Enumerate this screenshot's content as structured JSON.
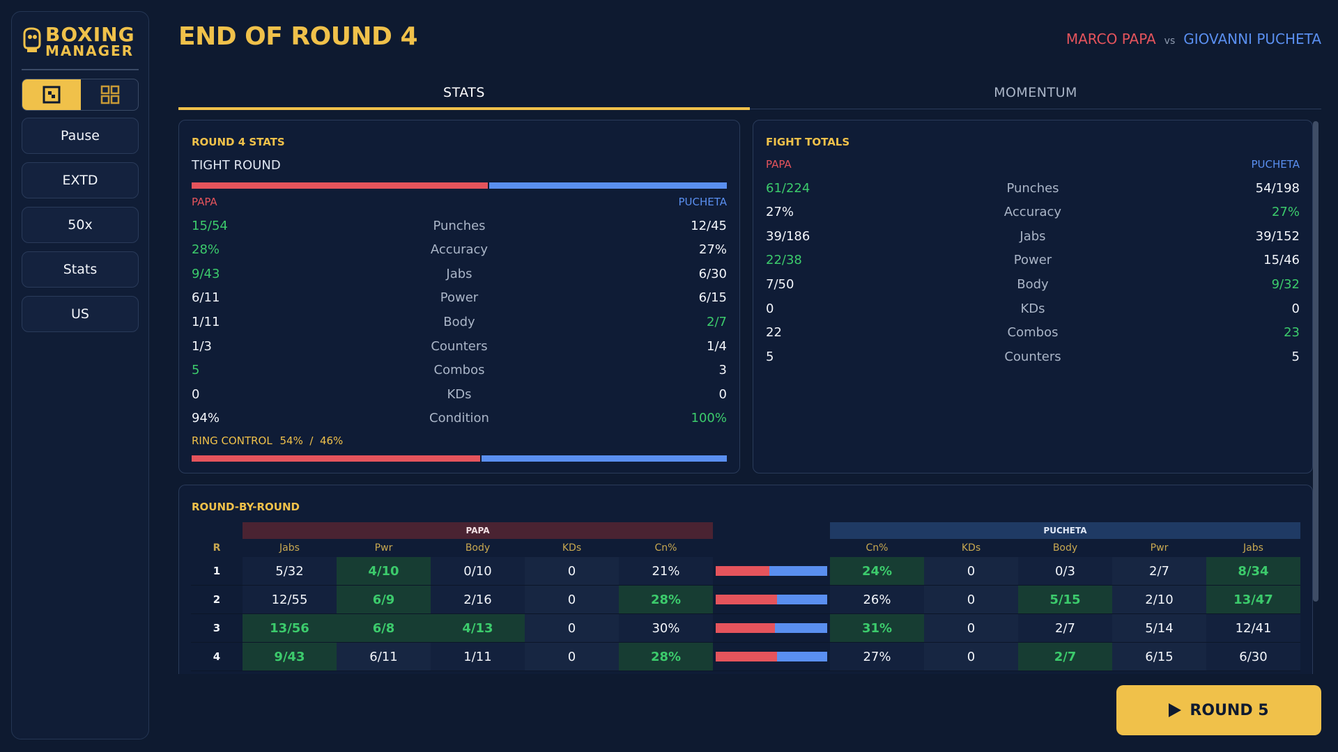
{
  "app": {
    "logo_line1": "BOXING",
    "logo_line2": "MANAGER"
  },
  "sidebar": {
    "view_toggle": [
      "single-view-icon",
      "grid-view-icon"
    ],
    "buttons": [
      "Pause",
      "EXTD",
      "50x",
      "Stats",
      "US"
    ]
  },
  "header": {
    "title": "END OF ROUND 4",
    "fighter_red": "MARCO PAPA",
    "vs": "vs",
    "fighter_blue": "GIOVANNI PUCHETA"
  },
  "tabs": [
    {
      "label": "STATS",
      "active": true
    },
    {
      "label": "MOMENTUM",
      "active": false
    }
  ],
  "colors": {
    "accent": "#f0c14a",
    "red": "#e5545c",
    "blue": "#5a8ff0",
    "win": "#3ccb6c"
  },
  "round_stats": {
    "title": "ROUND 4 STATS",
    "verdict": "TIGHT ROUND",
    "balance_red": 0.555,
    "left_name": "PAPA",
    "right_name": "PUCHETA",
    "rows": [
      {
        "label": "Punches",
        "left": "15/54",
        "right": "12/45",
        "winner": "left"
      },
      {
        "label": "Accuracy",
        "left": "28%",
        "right": "27%",
        "winner": "left"
      },
      {
        "label": "Jabs",
        "left": "9/43",
        "right": "6/30",
        "winner": "left"
      },
      {
        "label": "Power",
        "left": "6/11",
        "right": "6/15",
        "winner": ""
      },
      {
        "label": "Body",
        "left": "1/11",
        "right": "2/7",
        "winner": "right"
      },
      {
        "label": "Counters",
        "left": "1/3",
        "right": "1/4",
        "winner": ""
      },
      {
        "label": "Combos",
        "left": "5",
        "right": "3",
        "winner": "left"
      },
      {
        "label": "KDs",
        "left": "0",
        "right": "0",
        "winner": ""
      },
      {
        "label": "Condition",
        "left": "94%",
        "right": "100%",
        "winner": "right"
      }
    ],
    "ring_control_label": "RING CONTROL",
    "ring_control_text": "54%  /  46%",
    "ring_control_red": 0.54
  },
  "fight_totals": {
    "title": "FIGHT TOTALS",
    "left_name": "PAPA",
    "right_name": "PUCHETA",
    "rows": [
      {
        "label": "Punches",
        "left": "61/224",
        "right": "54/198",
        "winner": "left"
      },
      {
        "label": "Accuracy",
        "left": "27%",
        "right": "27%",
        "winner": "right"
      },
      {
        "label": "Jabs",
        "left": "39/186",
        "right": "39/152",
        "winner": ""
      },
      {
        "label": "Power",
        "left": "22/38",
        "right": "15/46",
        "winner": "left"
      },
      {
        "label": "Body",
        "left": "7/50",
        "right": "9/32",
        "winner": "right"
      },
      {
        "label": "KDs",
        "left": "0",
        "right": "0",
        "winner": ""
      },
      {
        "label": "Combos",
        "left": "22",
        "right": "23",
        "winner": "right"
      },
      {
        "label": "Counters",
        "left": "5",
        "right": "5",
        "winner": ""
      }
    ]
  },
  "round_by_round": {
    "title": "ROUND-BY-ROUND",
    "papa_group": "PAPA",
    "pucheta_group": "PUCHETA",
    "col_round": "R",
    "papa_cols": [
      "Jabs",
      "Pwr",
      "Body",
      "KDs",
      "Cn%"
    ],
    "pucheta_cols": [
      "Cn%",
      "KDs",
      "Body",
      "Pwr",
      "Jabs"
    ],
    "rows": [
      {
        "r": "1",
        "papa": [
          "5/32",
          "4/10",
          "0/10",
          "0",
          "21%"
        ],
        "papa_win": [
          false,
          true,
          false,
          false,
          false
        ],
        "momentum_red": 0.48,
        "pucheta": [
          "24%",
          "0",
          "0/3",
          "2/7",
          "8/34"
        ],
        "pucheta_win": [
          true,
          false,
          false,
          false,
          true
        ]
      },
      {
        "r": "2",
        "papa": [
          "12/55",
          "6/9",
          "2/16",
          "0",
          "28%"
        ],
        "papa_win": [
          false,
          true,
          false,
          false,
          true
        ],
        "momentum_red": 0.55,
        "pucheta": [
          "26%",
          "0",
          "5/15",
          "2/10",
          "13/47"
        ],
        "pucheta_win": [
          false,
          false,
          true,
          false,
          true
        ]
      },
      {
        "r": "3",
        "papa": [
          "13/56",
          "6/8",
          "4/13",
          "0",
          "30%"
        ],
        "papa_win": [
          true,
          true,
          true,
          false,
          false
        ],
        "momentum_red": 0.53,
        "pucheta": [
          "31%",
          "0",
          "2/7",
          "5/14",
          "12/41"
        ],
        "pucheta_win": [
          true,
          false,
          false,
          false,
          false
        ]
      },
      {
        "r": "4",
        "papa": [
          "9/43",
          "6/11",
          "1/11",
          "0",
          "28%"
        ],
        "papa_win": [
          true,
          false,
          false,
          false,
          true
        ],
        "momentum_red": 0.55,
        "pucheta": [
          "27%",
          "0",
          "2/7",
          "6/15",
          "6/30"
        ],
        "pucheta_win": [
          false,
          false,
          true,
          false,
          false
        ]
      }
    ]
  },
  "next_button": {
    "label": "ROUND 5"
  }
}
